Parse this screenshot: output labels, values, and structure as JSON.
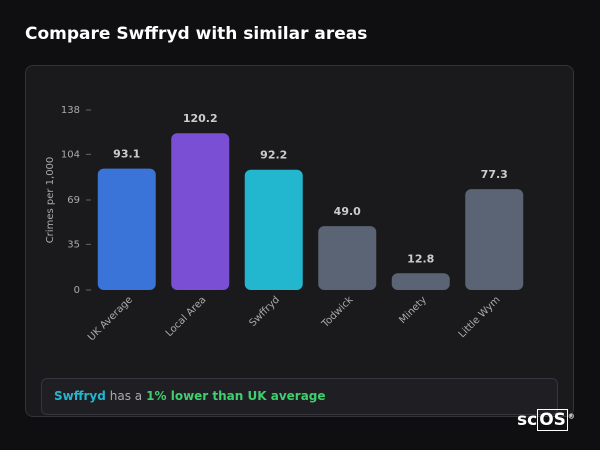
{
  "header": {
    "title": "Compare Swffryd with similar areas"
  },
  "chart_data": {
    "type": "bar",
    "ylabel": "Crimes per 1,000",
    "categories": [
      "UK Average",
      "Local Area",
      "Swffryd",
      "Todwick",
      "Minety",
      "Little Wym"
    ],
    "values": [
      93.1,
      120.2,
      92.2,
      49.0,
      12.8,
      77.3
    ],
    "value_labels": [
      "93.1",
      "120.2",
      "92.2",
      "49.0",
      "12.8",
      "77.3"
    ],
    "colors": [
      "#3a74d8",
      "#7a4fd4",
      "#22b7cf",
      "#5b6475",
      "#5b6475",
      "#5b6475"
    ],
    "ylim": [
      0,
      138
    ],
    "yticks": [
      0,
      35,
      69,
      104,
      138
    ],
    "grid": false
  },
  "footer": {
    "area": "Swffryd",
    "middle": "has a",
    "comparison": "1% lower than UK average"
  },
  "logo": {
    "prefix": "sc",
    "boxed": "OS",
    "mark": "®"
  }
}
